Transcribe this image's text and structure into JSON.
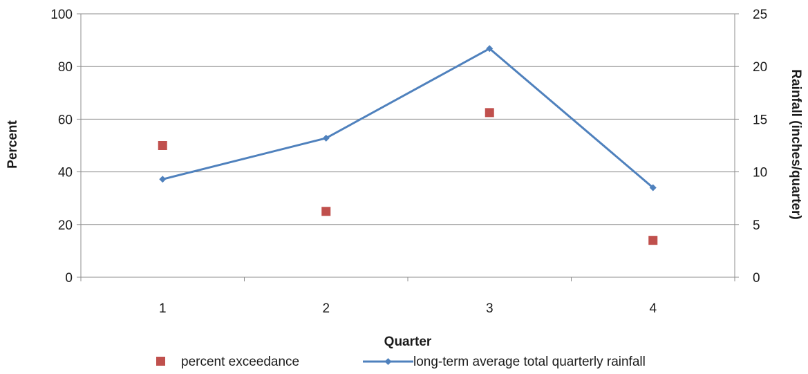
{
  "chart_data": {
    "type": "line",
    "categories": [
      "1",
      "2",
      "3",
      "4"
    ],
    "xlabel": "Quarter",
    "ylabel_left": "Percent",
    "ylabel_right": "Rainfall (inches/quarter)",
    "ylim_left": [
      0,
      100
    ],
    "ylim_right": [
      0,
      25
    ],
    "yticks_left": [
      "0",
      "20",
      "40",
      "60",
      "80",
      "100"
    ],
    "yticks_right": [
      "0",
      "5",
      "10",
      "15",
      "20",
      "25"
    ],
    "grid": true,
    "legend_position": "bottom",
    "series": [
      {
        "name": "percent exceedance",
        "kind": "scatter",
        "marker": "square",
        "axis": "left",
        "color": "#c0504d",
        "values": [
          50,
          25,
          62.5,
          14
        ]
      },
      {
        "name": "long-term average total quarterly rainfall",
        "kind": "line",
        "marker": "diamond",
        "axis": "right",
        "color": "#4f81bd",
        "values": [
          9.3,
          13.2,
          21.7,
          8.5
        ]
      }
    ]
  }
}
